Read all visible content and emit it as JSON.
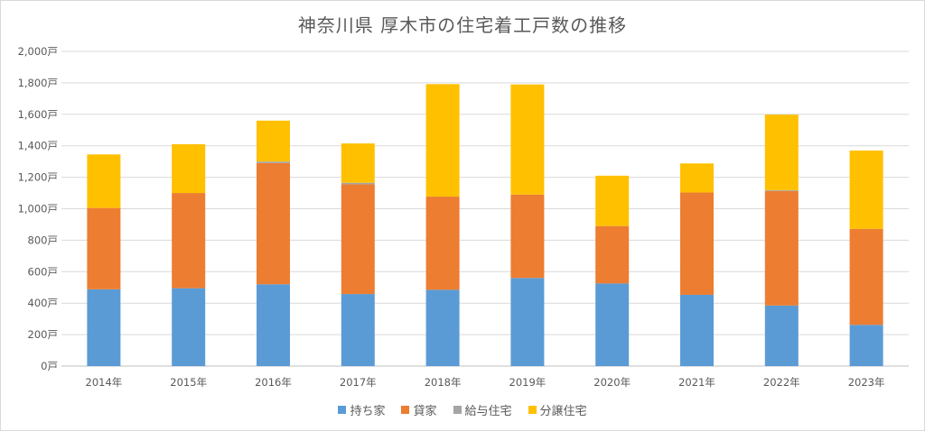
{
  "chart_data": {
    "type": "bar",
    "stacked": true,
    "title": "神奈川県 厚木市の住宅着工戸数の推移",
    "categories": [
      "2014年",
      "2015年",
      "2016年",
      "2017年",
      "2018年",
      "2019年",
      "2020年",
      "2021年",
      "2022年",
      "2023年"
    ],
    "ylim": [
      0,
      2000
    ],
    "yticks": [
      "0戸",
      "200戸",
      "400戸",
      "600戸",
      "800戸",
      "1,000戸",
      "1,200戸",
      "1,400戸",
      "1,600戸",
      "1,800戸",
      "2,000戸"
    ],
    "ytick_values": [
      0,
      200,
      400,
      600,
      800,
      1000,
      1200,
      1400,
      1600,
      1800,
      2000
    ],
    "grid": true,
    "legend_position": "bottom",
    "series": [
      {
        "name": "持ち家",
        "color": "#5b9bd5",
        "values": [
          488,
          495,
          520,
          458,
          485,
          560,
          525,
          453,
          385,
          262
        ]
      },
      {
        "name": "貸家",
        "color": "#ed7d31",
        "values": [
          517,
          605,
          770,
          697,
          592,
          530,
          365,
          650,
          728,
          610
        ]
      },
      {
        "name": "給与住宅",
        "color": "#a5a5a5",
        "values": [
          0,
          0,
          10,
          10,
          0,
          0,
          0,
          0,
          5,
          0
        ]
      },
      {
        "name": "分譲住宅",
        "color": "#ffc000",
        "values": [
          340,
          310,
          260,
          250,
          715,
          700,
          320,
          185,
          480,
          498
        ]
      }
    ]
  }
}
